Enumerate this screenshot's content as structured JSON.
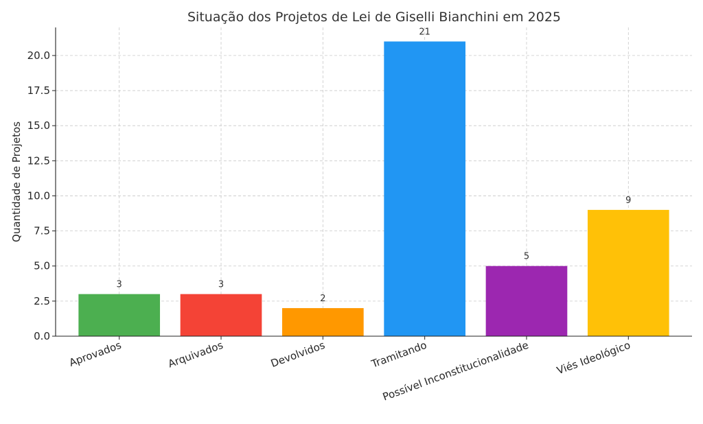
{
  "chart_data": {
    "type": "bar",
    "title": "Situação dos Projetos de Lei de Giselli Bianchini em 2025",
    "xlabel": "",
    "ylabel": "Quantidade de Projetos",
    "categories": [
      "Aprovados",
      "Arquivados",
      "Devolvidos",
      "Tramitando",
      "Possível Inconstitucionalidade",
      "Viés Ideológico"
    ],
    "values": [
      3,
      3,
      2,
      21,
      5,
      9
    ],
    "colors": [
      "#4caf50",
      "#f44336",
      "#ff9800",
      "#2196f3",
      "#9c27b0",
      "#ffc107"
    ],
    "ylim": [
      0,
      22
    ],
    "yticks": [
      "0.0",
      "2.5",
      "5.0",
      "7.5",
      "10.0",
      "12.5",
      "15.0",
      "17.5",
      "20.0"
    ],
    "grid": true,
    "data_labels": true
  }
}
